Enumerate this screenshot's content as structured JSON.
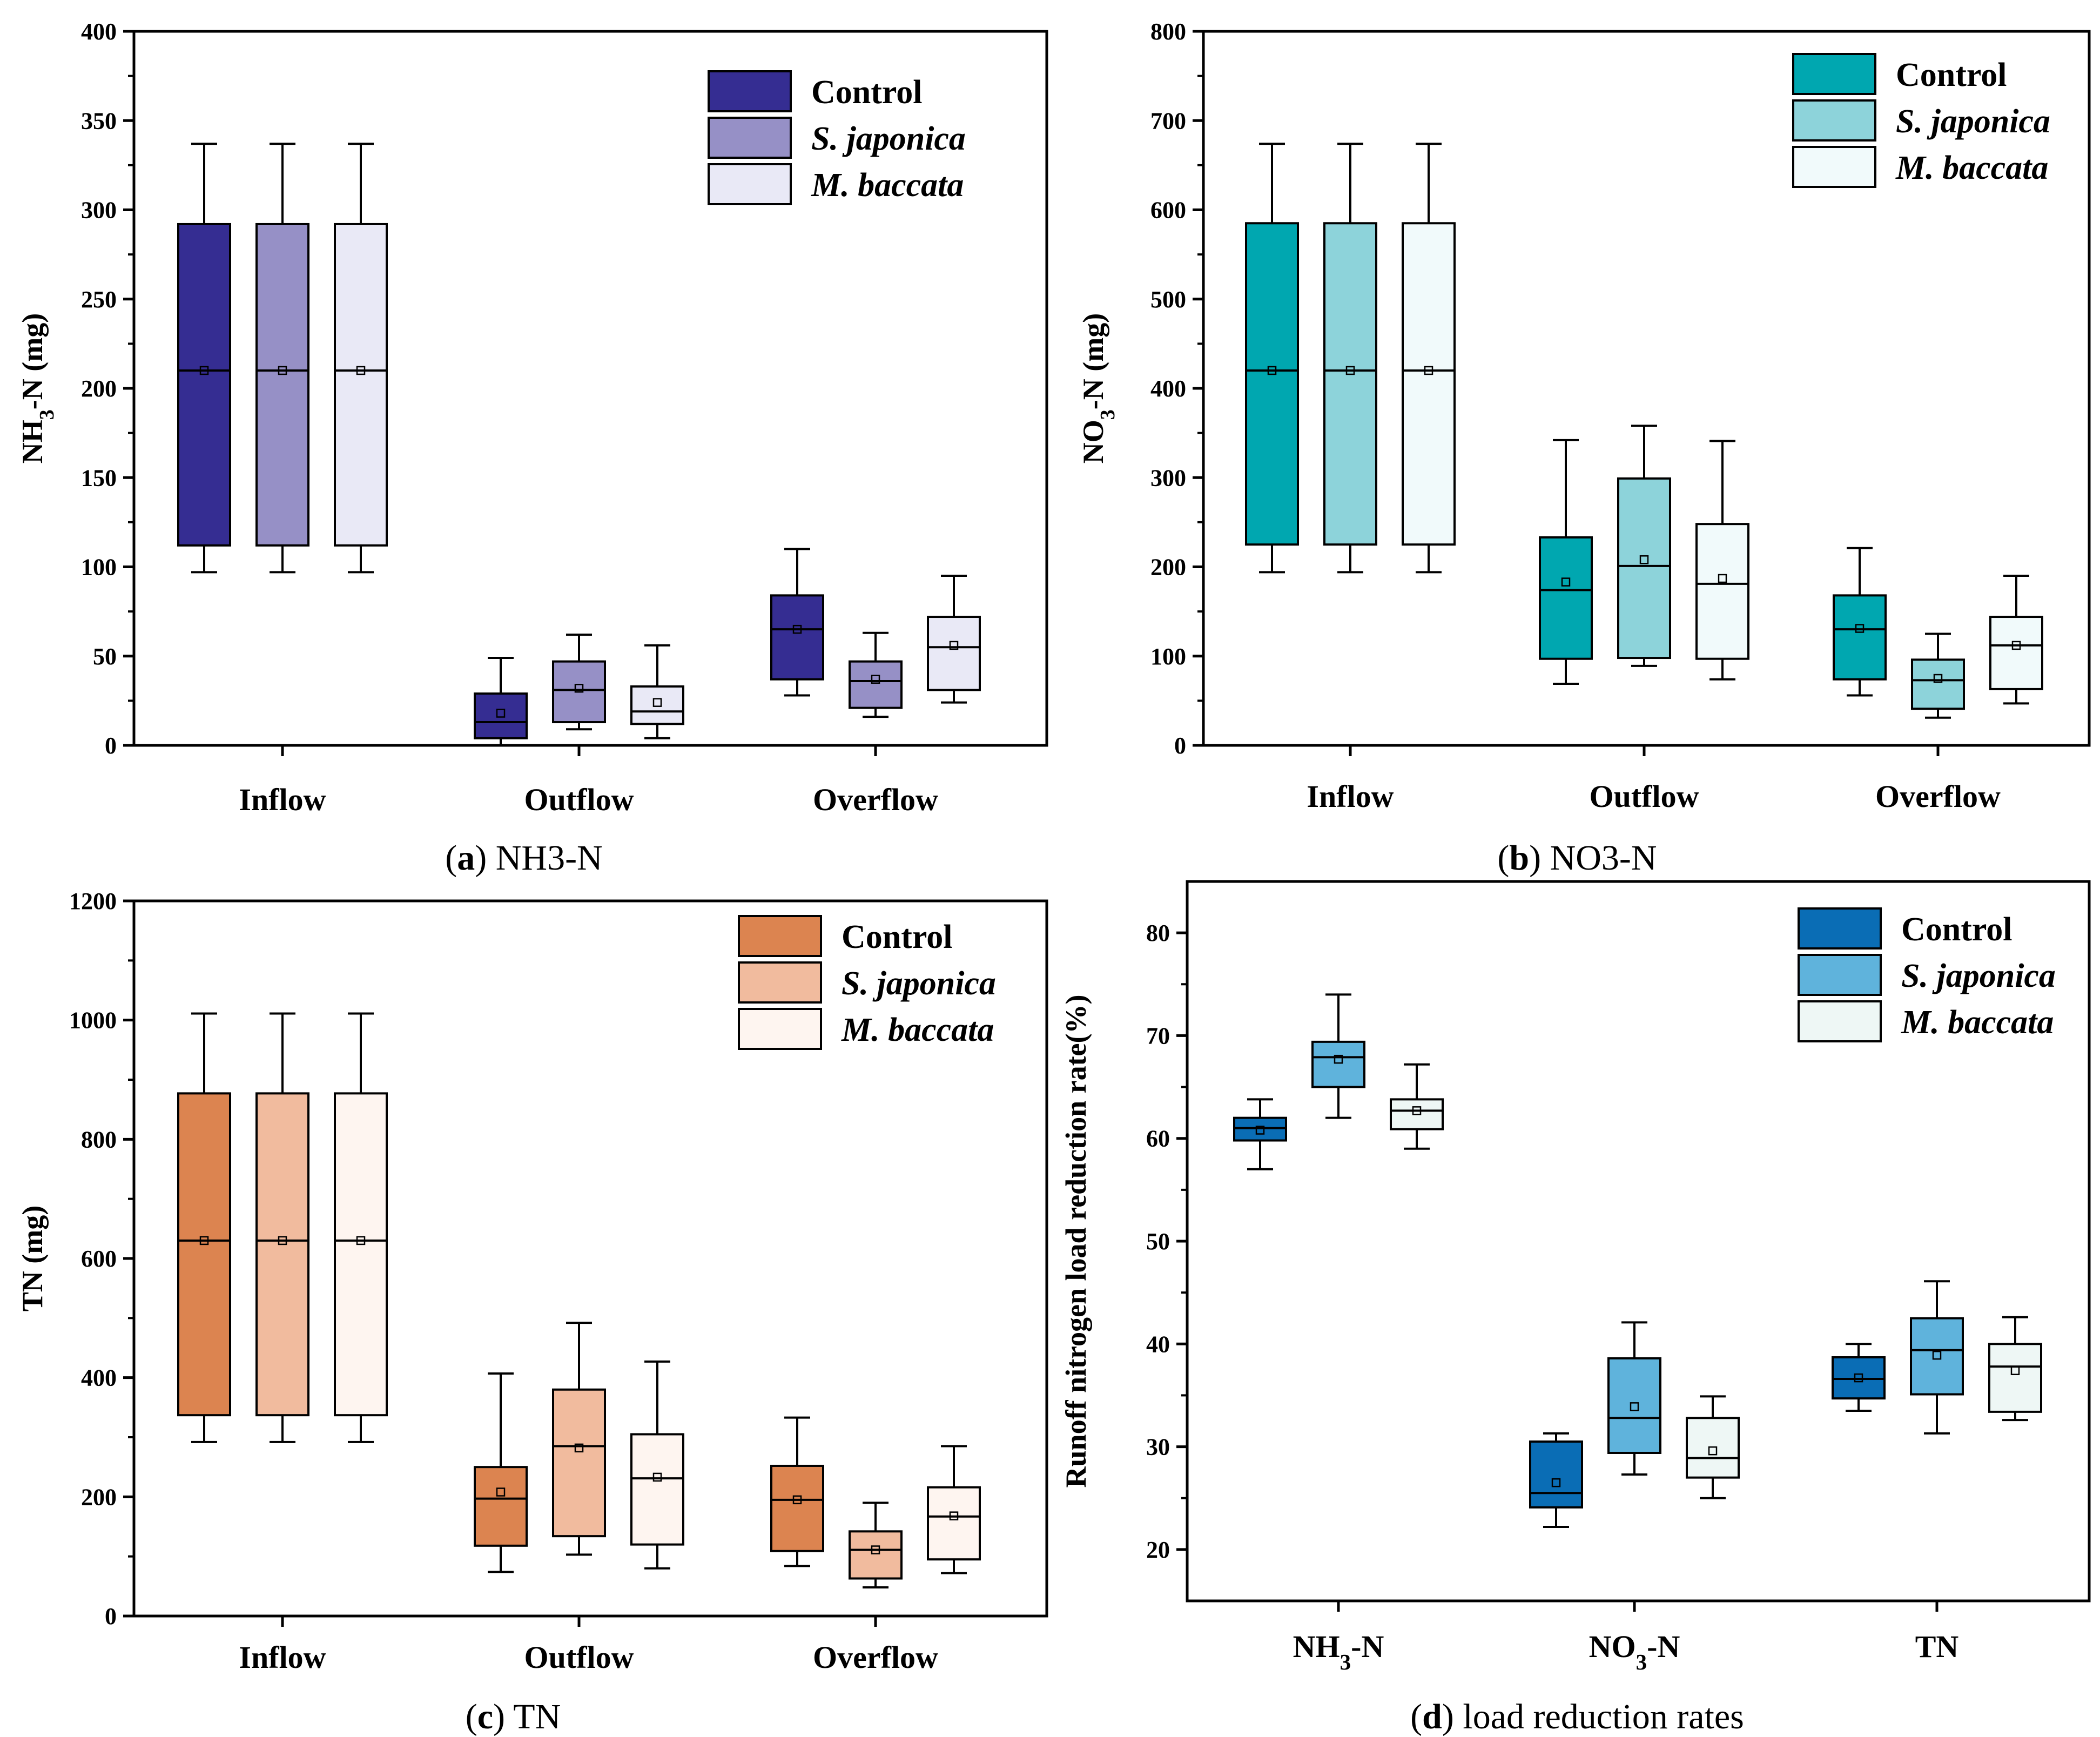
{
  "chart_data": [
    {
      "type": "box",
      "id": "a",
      "ylabel": "NH3-N (mg)",
      "ylabel_parts": [
        "NH",
        "3",
        "-N (mg)"
      ],
      "ylim": [
        0,
        400
      ],
      "yticks": [
        0,
        50,
        100,
        150,
        200,
        250,
        300,
        350,
        400
      ],
      "categories": [
        "Inflow",
        "Outflow",
        "Overflow"
      ],
      "caption": {
        "letter": "a",
        "text": "NH3-N"
      },
      "series": [
        {
          "name": "Control",
          "color": "#352D92",
          "boxes": [
            {
              "whislo": 97,
              "q1": 112,
              "med": 210,
              "q3": 292,
              "whishi": 337,
              "mean": 210
            },
            {
              "whislo": 0,
              "q1": 4,
              "med": 13,
              "q3": 29,
              "whishi": 49,
              "mean": 18
            },
            {
              "whislo": 28,
              "q1": 37,
              "med": 65,
              "q3": 84,
              "whishi": 110,
              "mean": 65
            }
          ]
        },
        {
          "name": "S. japonica",
          "color": "#9690C6",
          "boxes": [
            {
              "whislo": 97,
              "q1": 112,
              "med": 210,
              "q3": 292,
              "whishi": 337,
              "mean": 210
            },
            {
              "whislo": 9,
              "q1": 13,
              "med": 31,
              "q3": 47,
              "whishi": 62,
              "mean": 32
            },
            {
              "whislo": 16,
              "q1": 21,
              "med": 36,
              "q3": 47,
              "whishi": 63,
              "mean": 37
            }
          ]
        },
        {
          "name": "M. baccata",
          "color": "#E9E9F6",
          "boxes": [
            {
              "whislo": 97,
              "q1": 112,
              "med": 210,
              "q3": 292,
              "whishi": 337,
              "mean": 210
            },
            {
              "whislo": 4,
              "q1": 12,
              "med": 19,
              "q3": 33,
              "whishi": 56,
              "mean": 24
            },
            {
              "whislo": 24,
              "q1": 31,
              "med": 55,
              "q3": 72,
              "whishi": 95,
              "mean": 56
            }
          ]
        }
      ]
    },
    {
      "type": "box",
      "id": "b",
      "ylabel": "NO3-N (mg)",
      "ylabel_parts": [
        "NO",
        "3",
        "-N (mg)"
      ],
      "ylim": [
        0,
        800
      ],
      "yticks": [
        0,
        100,
        200,
        300,
        400,
        500,
        600,
        700,
        800
      ],
      "categories": [
        "Inflow",
        "Outflow",
        "Overflow"
      ],
      "caption": {
        "letter": "b",
        "text": "NO3-N"
      },
      "series": [
        {
          "name": "Control",
          "color": "#00A7B0",
          "boxes": [
            {
              "whislo": 194,
              "q1": 225,
              "med": 420,
              "q3": 585,
              "whishi": 674,
              "mean": 420
            },
            {
              "whislo": 69,
              "q1": 97,
              "med": 174,
              "q3": 233,
              "whishi": 342,
              "mean": 183
            },
            {
              "whislo": 56,
              "q1": 74,
              "med": 130,
              "q3": 168,
              "whishi": 221,
              "mean": 131
            }
          ]
        },
        {
          "name": "S. japonica",
          "color": "#8DD3DA",
          "boxes": [
            {
              "whislo": 194,
              "q1": 225,
              "med": 420,
              "q3": 585,
              "whishi": 674,
              "mean": 420
            },
            {
              "whislo": 89,
              "q1": 98,
              "med": 201,
              "q3": 299,
              "whishi": 358,
              "mean": 208
            },
            {
              "whislo": 31,
              "q1": 41,
              "med": 73,
              "q3": 96,
              "whishi": 125,
              "mean": 75
            }
          ]
        },
        {
          "name": "M. baccata",
          "color": "#F1FAFB",
          "boxes": [
            {
              "whislo": 194,
              "q1": 225,
              "med": 420,
              "q3": 585,
              "whishi": 674,
              "mean": 420
            },
            {
              "whislo": 74,
              "q1": 97,
              "med": 181,
              "q3": 248,
              "whishi": 341,
              "mean": 187
            },
            {
              "whislo": 47,
              "q1": 63,
              "med": 112,
              "q3": 144,
              "whishi": 190,
              "mean": 112
            }
          ]
        }
      ]
    },
    {
      "type": "box",
      "id": "c",
      "ylabel": "TN (mg)",
      "ylabel_parts": [
        "TN (mg)",
        "",
        ""
      ],
      "ylim": [
        0,
        1200
      ],
      "yticks": [
        0,
        200,
        400,
        600,
        800,
        1000,
        1200
      ],
      "categories": [
        "Inflow",
        "Outflow",
        "Overflow"
      ],
      "caption": {
        "letter": "c",
        "text": "TN"
      },
      "series": [
        {
          "name": "Control",
          "color": "#DC8450",
          "boxes": [
            {
              "whislo": 292,
              "q1": 337,
              "med": 630,
              "q3": 877,
              "whishi": 1011,
              "mean": 630
            },
            {
              "whislo": 74,
              "q1": 118,
              "med": 197,
              "q3": 250,
              "whishi": 407,
              "mean": 208
            },
            {
              "whislo": 84,
              "q1": 109,
              "med": 195,
              "q3": 252,
              "whishi": 333,
              "mean": 195
            }
          ]
        },
        {
          "name": "S. japonica",
          "color": "#F1BB9E",
          "boxes": [
            {
              "whislo": 292,
              "q1": 337,
              "med": 630,
              "q3": 877,
              "whishi": 1011,
              "mean": 630
            },
            {
              "whislo": 103,
              "q1": 134,
              "med": 285,
              "q3": 380,
              "whishi": 492,
              "mean": 282
            },
            {
              "whislo": 48,
              "q1": 63,
              "med": 111,
              "q3": 142,
              "whishi": 190,
              "mean": 111
            }
          ]
        },
        {
          "name": "M. baccata",
          "color": "#FEF5F0",
          "boxes": [
            {
              "whislo": 292,
              "q1": 337,
              "med": 630,
              "q3": 877,
              "whishi": 1011,
              "mean": 630
            },
            {
              "whislo": 80,
              "q1": 120,
              "med": 231,
              "q3": 305,
              "whishi": 427,
              "mean": 233
            },
            {
              "whislo": 72,
              "q1": 95,
              "med": 167,
              "q3": 216,
              "whishi": 285,
              "mean": 168
            }
          ]
        }
      ]
    },
    {
      "type": "box",
      "id": "d",
      "ylabel": "Runoff nitrogen load reduction rate(%)",
      "ylabel_parts": [
        "Runoff nitrogen load reduction rate(%)",
        "",
        ""
      ],
      "ylim": [
        15,
        85
      ],
      "yticks": [
        20,
        30,
        40,
        50,
        60,
        70,
        80
      ],
      "categories": [
        "NH3-N",
        "NO3-N",
        "TN"
      ],
      "category_parts": [
        [
          "NH",
          "3",
          "-N"
        ],
        [
          "NO",
          "3",
          "-N"
        ],
        [
          "TN",
          "",
          ""
        ]
      ],
      "caption": {
        "letter": "d",
        "text": "load reduction rates"
      },
      "series": [
        {
          "name": "Control",
          "color": "#0A6DB5",
          "boxes": [
            {
              "whislo": 57,
              "q1": 59.8,
              "med": 61,
              "q3": 62,
              "whishi": 63.8,
              "mean": 60.8
            },
            {
              "whislo": 22.2,
              "q1": 24.1,
              "med": 25.5,
              "q3": 30.5,
              "whishi": 31.3,
              "mean": 26.5
            },
            {
              "whislo": 33.5,
              "q1": 34.7,
              "med": 36.6,
              "q3": 38.7,
              "whishi": 40,
              "mean": 36.7
            }
          ]
        },
        {
          "name": "S. japonica",
          "color": "#5FB3DC",
          "boxes": [
            {
              "whislo": 62,
              "q1": 65,
              "med": 67.9,
              "q3": 69.4,
              "whishi": 74,
              "mean": 67.7
            },
            {
              "whislo": 27.3,
              "q1": 29.4,
              "med": 32.8,
              "q3": 38.6,
              "whishi": 42.1,
              "mean": 33.9
            },
            {
              "whislo": 31.3,
              "q1": 35.1,
              "med": 39.4,
              "q3": 42.5,
              "whishi": 46.1,
              "mean": 38.9
            }
          ]
        },
        {
          "name": "M. baccata",
          "color": "#EEF7F5",
          "boxes": [
            {
              "whislo": 59,
              "q1": 60.9,
              "med": 62.7,
              "q3": 63.8,
              "whishi": 67.2,
              "mean": 62.7
            },
            {
              "whislo": 25,
              "q1": 27,
              "med": 28.9,
              "q3": 32.8,
              "whishi": 34.9,
              "mean": 29.6
            },
            {
              "whislo": 32.6,
              "q1": 33.4,
              "med": 37.8,
              "q3": 40,
              "whishi": 42.6,
              "mean": 37.4
            }
          ]
        }
      ]
    }
  ]
}
